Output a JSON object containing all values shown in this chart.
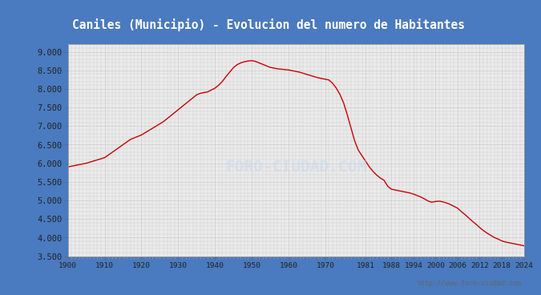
{
  "title": "Caniles (Municipio) - Evolucion del numero de Habitantes",
  "title_color": "white",
  "title_bg_color": "#4a7abf",
  "plot_bg_color": "#ebebeb",
  "line_color": "#cc0000",
  "watermark": "http://www.foro-ciudad.com",
  "watermark_logo": "FORO-CIUDAD.COM",
  "ylim": [
    3500,
    9200
  ],
  "yticks": [
    3500,
    4000,
    4500,
    5000,
    5500,
    6000,
    6500,
    7000,
    7500,
    8000,
    8500,
    9000
  ],
  "xticks": [
    1900,
    1910,
    1920,
    1930,
    1940,
    1950,
    1960,
    1970,
    1981,
    1988,
    1994,
    2000,
    2006,
    2012,
    2018,
    2024
  ],
  "years": [
    1900,
    1901,
    1902,
    1903,
    1904,
    1905,
    1906,
    1907,
    1908,
    1909,
    1910,
    1911,
    1912,
    1913,
    1914,
    1915,
    1916,
    1917,
    1918,
    1919,
    1920,
    1921,
    1922,
    1923,
    1924,
    1925,
    1926,
    1927,
    1928,
    1929,
    1930,
    1931,
    1932,
    1933,
    1934,
    1935,
    1936,
    1937,
    1938,
    1939,
    1940,
    1941,
    1942,
    1943,
    1944,
    1945,
    1946,
    1947,
    1948,
    1949,
    1950,
    1951,
    1952,
    1953,
    1954,
    1955,
    1956,
    1957,
    1958,
    1959,
    1960,
    1961,
    1962,
    1963,
    1964,
    1965,
    1966,
    1967,
    1968,
    1969,
    1970,
    1971,
    1972,
    1973,
    1974,
    1975,
    1976,
    1977,
    1978,
    1979,
    1980,
    1981,
    1982,
    1983,
    1984,
    1985,
    1986,
    1987,
    1988,
    1989,
    1990,
    1991,
    1992,
    1993,
    1994,
    1995,
    1996,
    1997,
    1998,
    1999,
    2000,
    2001,
    2002,
    2003,
    2004,
    2005,
    2006,
    2007,
    2008,
    2009,
    2010,
    2011,
    2012,
    2013,
    2014,
    2015,
    2016,
    2017,
    2018,
    2019,
    2020,
    2021,
    2022,
    2023,
    2024
  ],
  "population": [
    5900,
    5920,
    5940,
    5960,
    5980,
    6000,
    6030,
    6060,
    6090,
    6120,
    6150,
    6220,
    6290,
    6360,
    6430,
    6500,
    6570,
    6640,
    6680,
    6720,
    6760,
    6820,
    6880,
    6940,
    7000,
    7060,
    7120,
    7200,
    7280,
    7360,
    7440,
    7520,
    7600,
    7680,
    7760,
    7840,
    7880,
    7900,
    7920,
    7970,
    8020,
    8100,
    8200,
    8330,
    8450,
    8570,
    8650,
    8700,
    8730,
    8750,
    8760,
    8740,
    8700,
    8660,
    8620,
    8580,
    8560,
    8540,
    8530,
    8520,
    8510,
    8490,
    8470,
    8450,
    8420,
    8390,
    8360,
    8330,
    8300,
    8280,
    8260,
    8240,
    8150,
    8020,
    7850,
    7620,
    7300,
    6950,
    6600,
    6350,
    6200,
    6050,
    5900,
    5780,
    5680,
    5600,
    5540,
    5380,
    5300,
    5280,
    5260,
    5240,
    5220,
    5200,
    5170,
    5130,
    5090,
    5040,
    4980,
    4950,
    4970,
    4980,
    4960,
    4930,
    4890,
    4840,
    4790,
    4700,
    4620,
    4530,
    4440,
    4360,
    4270,
    4190,
    4120,
    4060,
    4000,
    3960,
    3910,
    3880,
    3860,
    3840,
    3820,
    3800,
    3780
  ]
}
